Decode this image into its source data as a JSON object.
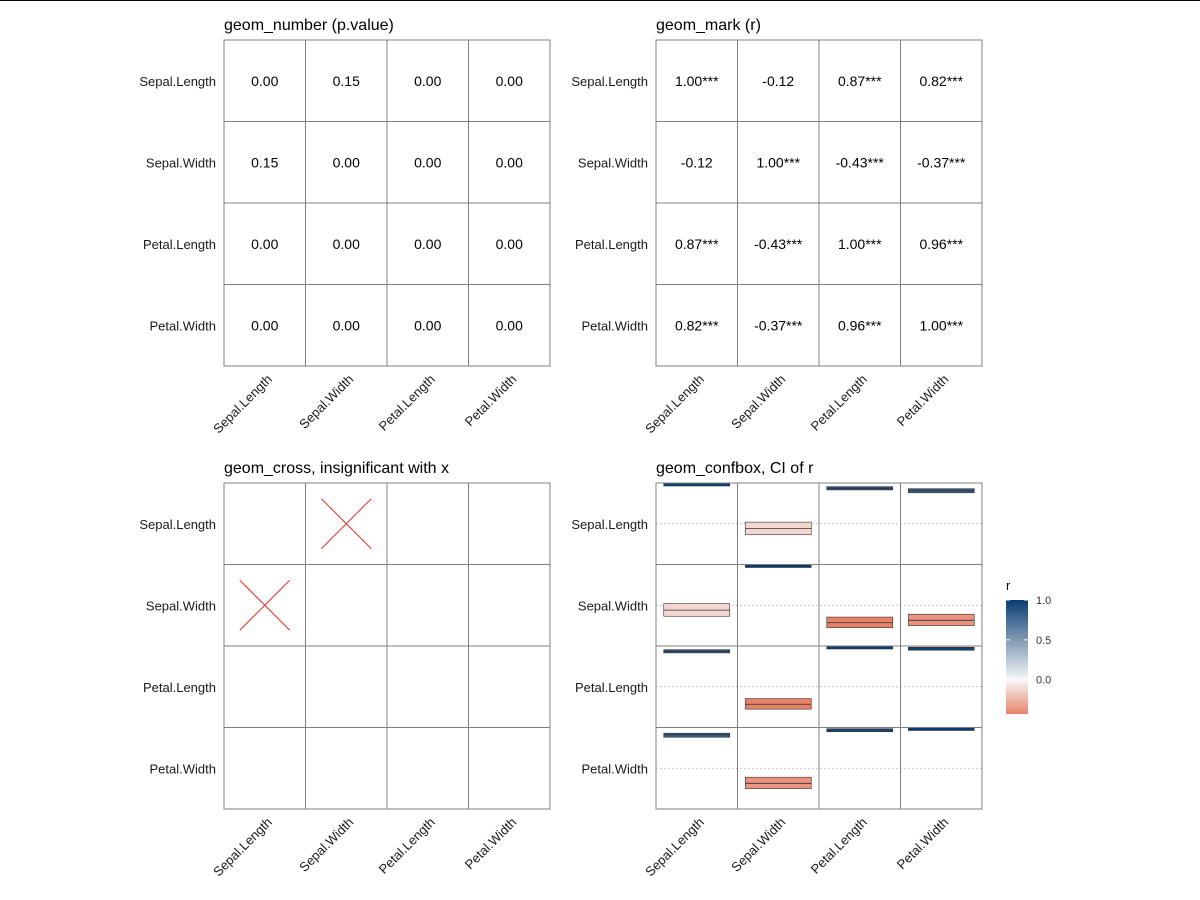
{
  "variables": [
    "Sepal.Length",
    "Sepal.Width",
    "Petal.Length",
    "Petal.Width"
  ],
  "chart_data": [
    {
      "type": "table",
      "title": "geom_number (p.value)",
      "rows": [
        "Sepal.Length",
        "Sepal.Width",
        "Petal.Length",
        "Petal.Width"
      ],
      "columns": [
        "Sepal.Length",
        "Sepal.Width",
        "Petal.Length",
        "Petal.Width"
      ],
      "cells": [
        [
          "0.00",
          "0.15",
          "0.00",
          "0.00"
        ],
        [
          "0.15",
          "0.00",
          "0.00",
          "0.00"
        ],
        [
          "0.00",
          "0.00",
          "0.00",
          "0.00"
        ],
        [
          "0.00",
          "0.00",
          "0.00",
          "0.00"
        ]
      ]
    },
    {
      "type": "table",
      "title": "geom_mark (r)",
      "rows": [
        "Sepal.Length",
        "Sepal.Width",
        "Petal.Length",
        "Petal.Width"
      ],
      "columns": [
        "Sepal.Length",
        "Sepal.Width",
        "Petal.Length",
        "Petal.Width"
      ],
      "cells": [
        [
          "1.00***",
          "-0.12",
          "0.87***",
          "0.82***"
        ],
        [
          "-0.12",
          "1.00***",
          "-0.43***",
          "-0.37***"
        ],
        [
          "0.87***",
          "-0.43***",
          "1.00***",
          "0.96***"
        ],
        [
          "0.82***",
          "-0.37***",
          "0.96***",
          "1.00***"
        ]
      ]
    },
    {
      "type": "heatmap",
      "title": "geom_cross, insignificant with x",
      "rows": [
        "Sepal.Length",
        "Sepal.Width",
        "Petal.Length",
        "Petal.Width"
      ],
      "columns": [
        "Sepal.Length",
        "Sepal.Width",
        "Petal.Length",
        "Petal.Width"
      ],
      "crosses": [
        {
          "row": "Sepal.Length",
          "column": "Sepal.Width"
        },
        {
          "row": "Sepal.Width",
          "column": "Sepal.Length"
        }
      ],
      "cross_color": "#e8312a"
    },
    {
      "type": "heatmap",
      "title": "geom_confbox, CI of r",
      "rows": [
        "Sepal.Length",
        "Sepal.Width",
        "Petal.Length",
        "Petal.Width"
      ],
      "columns": [
        "Sepal.Length",
        "Sepal.Width",
        "Petal.Length",
        "Petal.Width"
      ],
      "r": [
        [
          1.0,
          -0.12,
          0.87,
          0.82
        ],
        [
          -0.12,
          1.0,
          -0.43,
          -0.37
        ],
        [
          0.87,
          -0.43,
          1.0,
          0.96
        ],
        [
          0.82,
          -0.37,
          0.96,
          1.0
        ]
      ],
      "ci_lower": [
        [
          1.0,
          -0.27,
          0.83,
          0.76
        ],
        [
          -0.27,
          1.0,
          -0.55,
          -0.5
        ],
        [
          0.83,
          -0.55,
          1.0,
          0.95
        ],
        [
          0.76,
          -0.5,
          0.95,
          1.0
        ]
      ],
      "ci_upper": [
        [
          1.0,
          0.04,
          0.91,
          0.86
        ],
        [
          0.04,
          1.0,
          -0.29,
          -0.22
        ],
        [
          0.91,
          -0.29,
          1.0,
          0.97
        ],
        [
          0.86,
          -0.22,
          0.97,
          1.0
        ]
      ],
      "legend": {
        "title": "r",
        "ticks": [
          "1.0",
          "0.5",
          "0.0"
        ],
        "tick_values": [
          1.0,
          0.5,
          0.0
        ],
        "range": [
          -0.43,
          1.0
        ],
        "placement": "right",
        "colors": {
          "high": "#0b3d73",
          "mid": "#f7f7f7",
          "low": "#e8836a"
        }
      }
    }
  ]
}
